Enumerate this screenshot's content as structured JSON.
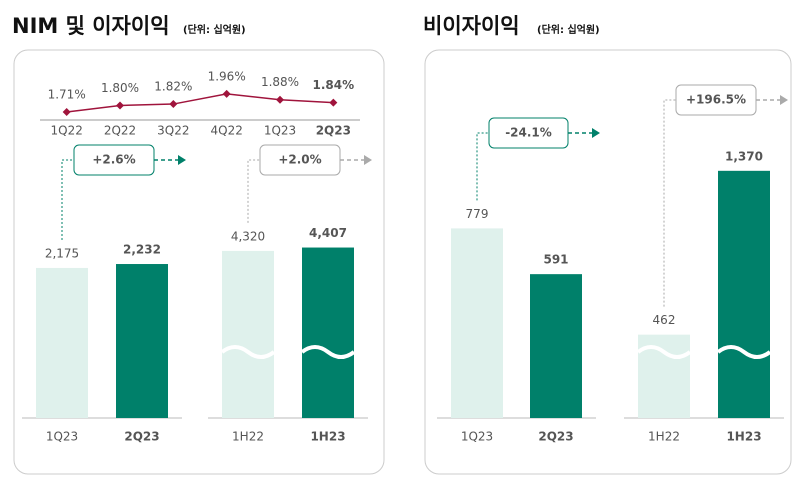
{
  "panels": [
    {
      "title": "NIM 및 이자이익",
      "unit": "(단위: 십억원)"
    },
    {
      "title": "비이자이익",
      "unit": "(단위: 십억원)"
    }
  ],
  "chart_data": [
    {
      "type": "line",
      "categories": [
        "1Q22",
        "2Q22",
        "3Q22",
        "4Q22",
        "1Q23",
        "2Q23"
      ],
      "values": [
        1.71,
        1.8,
        1.82,
        1.96,
        1.88,
        1.84
      ],
      "value_labels": [
        "1.71%",
        "1.80%",
        "1.82%",
        "1.96%",
        "1.88%",
        "1.84%"
      ],
      "color": "#a0143c",
      "ylim": [
        1.6,
        2.4
      ]
    },
    {
      "type": "bar",
      "categories": [
        "1Q23",
        "2Q23"
      ],
      "values": [
        2175,
        2232
      ],
      "value_labels": [
        "2,175",
        "2,232"
      ],
      "colors": [
        "#dff1ec",
        "#00806a"
      ],
      "ylim": [
        0,
        3740
      ],
      "annotation": "+2.6%"
    },
    {
      "type": "bar",
      "categories": [
        "1H22",
        "1H23"
      ],
      "values": [
        4320,
        4407
      ],
      "value_labels": [
        "4,320",
        "4,407"
      ],
      "colors": [
        "#dff1ec",
        "#00806a"
      ],
      "ylim": [
        0,
        6670
      ],
      "annotation": "+2.0%"
    },
    {
      "type": "bar",
      "categories": [
        "1Q23",
        "2Q23"
      ],
      "values": [
        779,
        591
      ],
      "colors": [
        "#dff1ec",
        "#00806a"
      ],
      "ylim": [
        0,
        1060
      ],
      "annotation": "-24.1%"
    },
    {
      "type": "bar",
      "categories": [
        "1H22",
        "1H23"
      ],
      "values": [
        462,
        1370
      ],
      "value_labels": [
        "462",
        "1,370"
      ],
      "colors": [
        "#dff1ec",
        "#00806a"
      ],
      "ylim": [
        0,
        1430
      ],
      "annotation": "+196.5%"
    }
  ]
}
